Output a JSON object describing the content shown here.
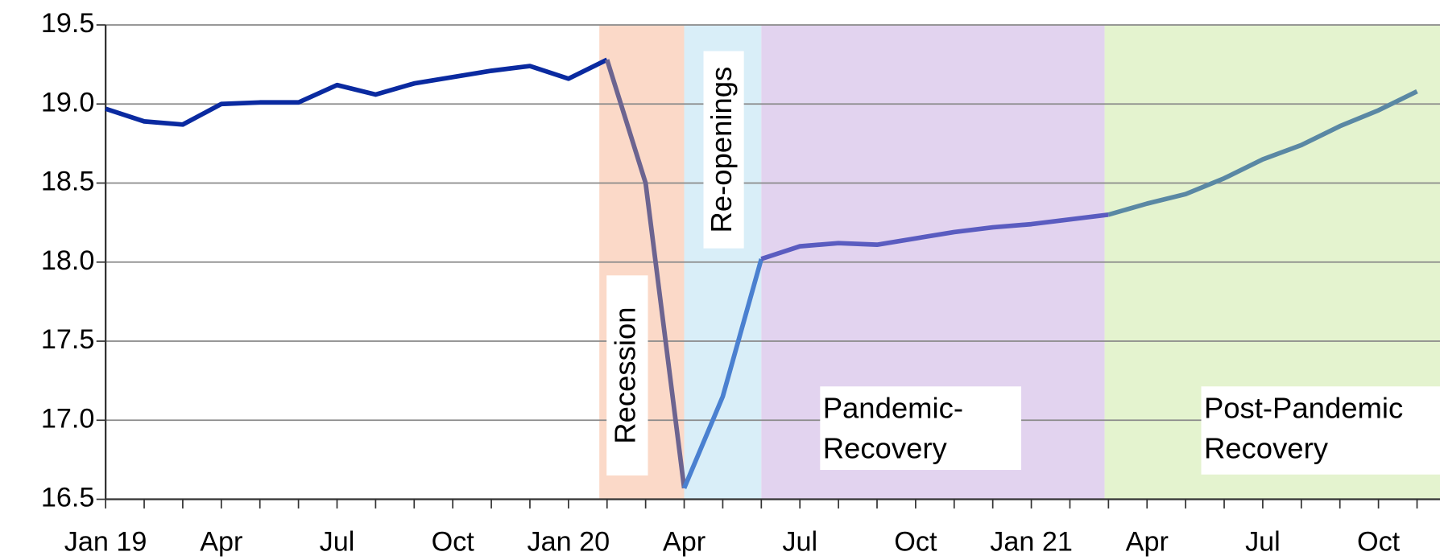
{
  "chart_data": {
    "type": "line",
    "categories": [
      "Jan 19",
      null,
      null,
      "Apr",
      null,
      null,
      "Jul",
      null,
      null,
      "Oct",
      null,
      null,
      "Jan 20",
      null,
      null,
      "Apr",
      null,
      null,
      "Jul",
      null,
      null,
      "Oct",
      null,
      null,
      "Jan 21",
      null,
      null,
      "Apr",
      null,
      null,
      "Jul",
      null,
      null,
      "Oct",
      null
    ],
    "series": [
      {
        "color": "#0a2aa0",
        "values": [
          18.97,
          18.89,
          18.87,
          19.0,
          19.01,
          19.01,
          19.12,
          19.06,
          19.13,
          19.17,
          19.21,
          19.24,
          19.16,
          19.28,
          18.5,
          16.57,
          17.15,
          18.02,
          18.1,
          18.12,
          18.11,
          18.15,
          18.19,
          18.22,
          18.24,
          18.27,
          18.3,
          18.37,
          18.43,
          18.53,
          18.65,
          18.74,
          18.86,
          18.96,
          19.08
        ]
      }
    ],
    "periods": [
      {
        "label": [
          "Recession"
        ],
        "start": 12.8,
        "end": 15,
        "band_color": "#fbd9c8",
        "line_color": "#6c6490"
      },
      {
        "label": [
          "Re-openings"
        ],
        "start": 15,
        "end": 17,
        "band_color": "#d9eef8",
        "line_color": "#4a80d0"
      },
      {
        "label": [
          "Pandemic-",
          "Recovery"
        ],
        "start": 17,
        "end": 25.9,
        "band_color": "#e2d3ef",
        "line_color": "#5a5cc0"
      },
      {
        "label": [
          "Post-Pandemic",
          "Recovery"
        ],
        "start": 25.9,
        "end": 34.6,
        "band_color": "#e4f3cf",
        "line_color": "#5a88a4"
      }
    ],
    "xlim": [
      0,
      34.6
    ],
    "ylim": [
      16.5,
      19.5
    ],
    "yticks": [
      16.5,
      {
        "value": 17,
        "label": "17.0"
      },
      17.5,
      {
        "value": 18,
        "label": "18.0"
      },
      18.5,
      {
        "value": 19,
        "label": "19.0"
      },
      19.5
    ],
    "grid": true
  }
}
